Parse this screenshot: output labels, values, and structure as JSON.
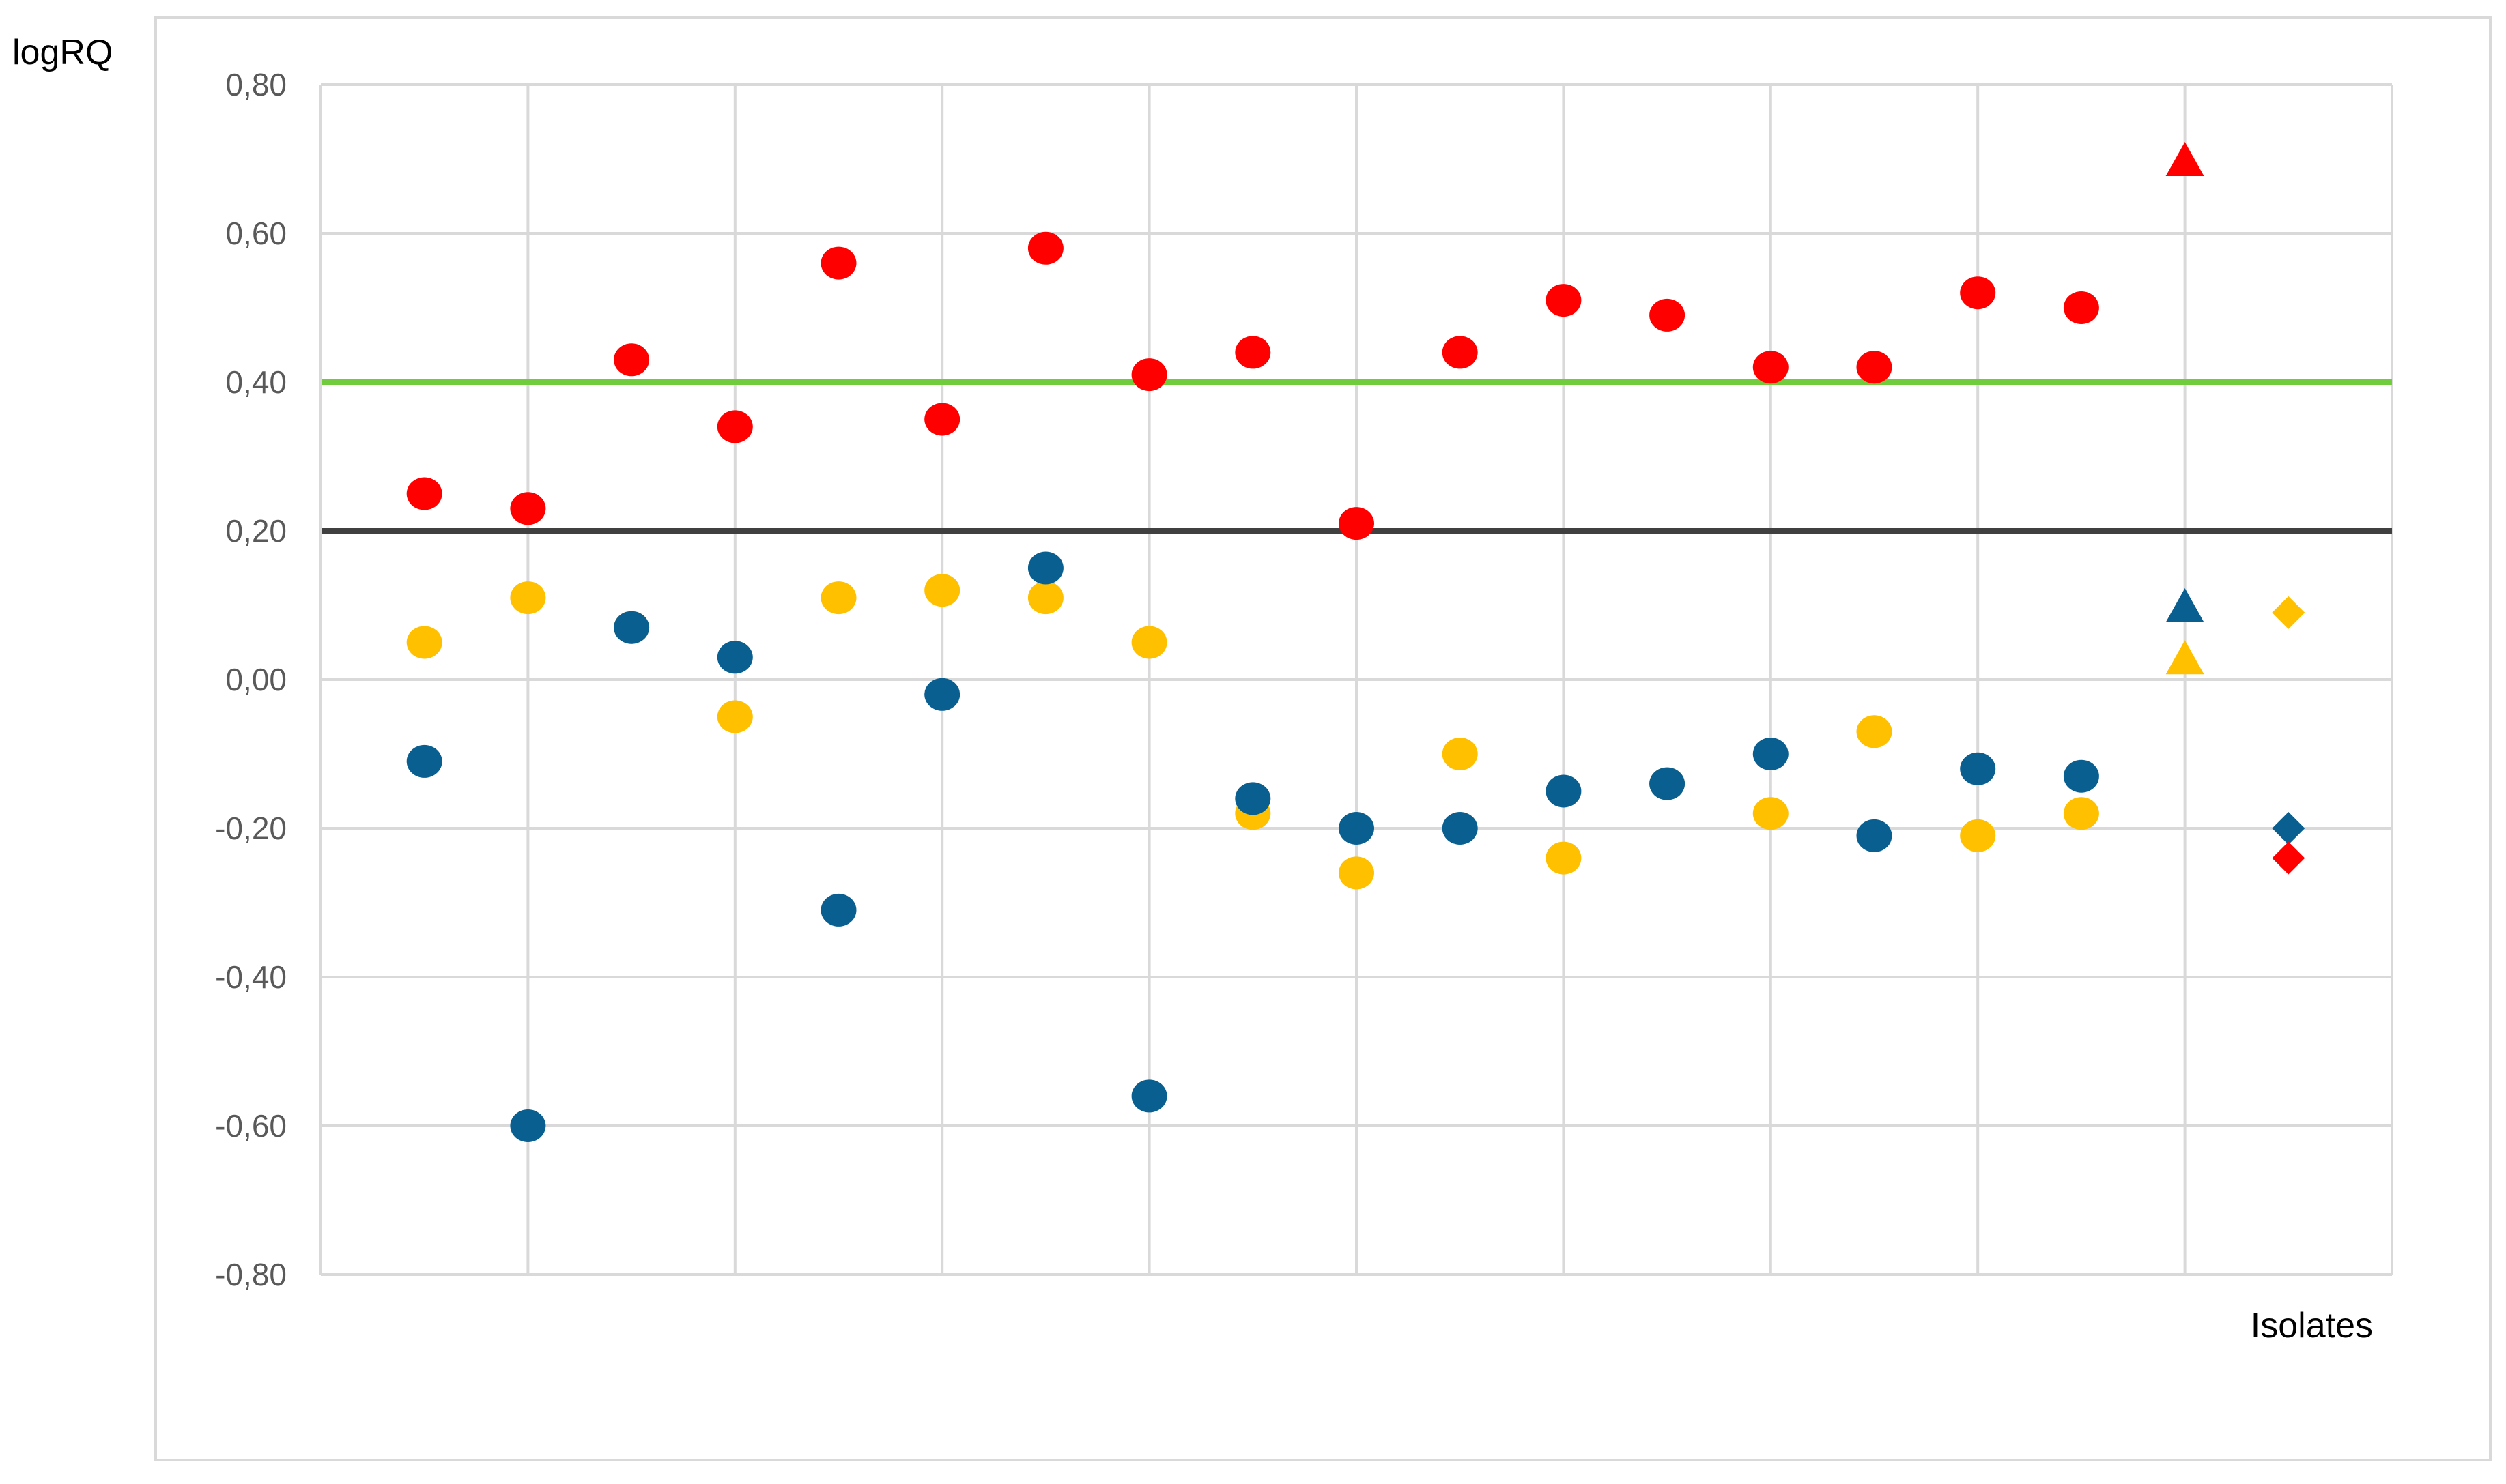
{
  "chart_data": {
    "type": "scatter",
    "ylabel": "logRQ",
    "xlabel": "Isolates",
    "ylim": [
      -0.8,
      0.8
    ],
    "yticks": [
      0.8,
      0.6,
      0.4,
      0.2,
      0.0,
      -0.2,
      -0.4,
      -0.6,
      -0.8
    ],
    "ytick_labels": [
      "0,80",
      "0,60",
      "0,40",
      "0,20",
      "0,00",
      "-0,20",
      "-0,40",
      "-0,60",
      "-0,80"
    ],
    "xlim": [
      0,
      20
    ],
    "grid": true,
    "legend": "none",
    "colors": {
      "red": "#ff0000",
      "yellow": "#ffc000",
      "blue": "#0a5f91",
      "green_line": "#70cc3c",
      "dark_line": "#404040",
      "grid": "#d9d9d9"
    },
    "reference_lines": [
      {
        "y": 0.4,
        "color": "#70cc3c"
      },
      {
        "y": 0.2,
        "color": "#404040"
      }
    ],
    "series": [
      {
        "color": "#ffc000",
        "marker": "circle",
        "points": [
          {
            "x": 1,
            "y": 0.05
          },
          {
            "x": 2,
            "y": 0.11
          },
          {
            "x": 3,
            "y": 0.07
          },
          {
            "x": 4,
            "y": -0.05
          },
          {
            "x": 5,
            "y": 0.11
          },
          {
            "x": 6,
            "y": 0.12
          },
          {
            "x": 7,
            "y": 0.11
          },
          {
            "x": 8,
            "y": 0.05
          },
          {
            "x": 9,
            "y": -0.18
          },
          {
            "x": 10,
            "y": -0.26
          },
          {
            "x": 11,
            "y": -0.1
          },
          {
            "x": 12,
            "y": -0.24
          },
          {
            "x": 13,
            "y": -0.14
          },
          {
            "x": 14,
            "y": -0.18
          },
          {
            "x": 15,
            "y": -0.07
          },
          {
            "x": 16,
            "y": -0.21
          },
          {
            "x": 17,
            "y": -0.18
          }
        ]
      },
      {
        "color": "#0a5f91",
        "marker": "circle",
        "points": [
          {
            "x": 1,
            "y": -0.11
          },
          {
            "x": 2,
            "y": -0.6
          },
          {
            "x": 3,
            "y": 0.07
          },
          {
            "x": 4,
            "y": 0.03
          },
          {
            "x": 5,
            "y": -0.31
          },
          {
            "x": 6,
            "y": -0.02
          },
          {
            "x": 7,
            "y": 0.15
          },
          {
            "x": 8,
            "y": -0.56
          },
          {
            "x": 9,
            "y": -0.16
          },
          {
            "x": 10,
            "y": -0.2
          },
          {
            "x": 11,
            "y": -0.2
          },
          {
            "x": 12,
            "y": -0.15
          },
          {
            "x": 13,
            "y": -0.14
          },
          {
            "x": 14,
            "y": -0.1
          },
          {
            "x": 15,
            "y": -0.21
          },
          {
            "x": 16,
            "y": -0.12
          },
          {
            "x": 17,
            "y": -0.13
          }
        ]
      },
      {
        "color": "#ff0000",
        "marker": "circle",
        "points": [
          {
            "x": 1,
            "y": 0.25
          },
          {
            "x": 2,
            "y": 0.23
          },
          {
            "x": 3,
            "y": 0.43
          },
          {
            "x": 4,
            "y": 0.34
          },
          {
            "x": 5,
            "y": 0.56
          },
          {
            "x": 6,
            "y": 0.35
          },
          {
            "x": 7,
            "y": 0.58
          },
          {
            "x": 8,
            "y": 0.41
          },
          {
            "x": 9,
            "y": 0.44
          },
          {
            "x": 10,
            "y": 0.21
          },
          {
            "x": 11,
            "y": 0.44
          },
          {
            "x": 12,
            "y": 0.51
          },
          {
            "x": 13,
            "y": 0.49
          },
          {
            "x": 14,
            "y": 0.42
          },
          {
            "x": 15,
            "y": 0.42
          },
          {
            "x": 16,
            "y": 0.52
          },
          {
            "x": 17,
            "y": 0.5
          }
        ]
      },
      {
        "color": "#ff0000",
        "marker": "triangle",
        "points": [
          {
            "x": 18,
            "y": 0.7
          }
        ]
      },
      {
        "color": "#0a5f91",
        "marker": "triangle",
        "points": [
          {
            "x": 18,
            "y": 0.1
          }
        ]
      },
      {
        "color": "#ffc000",
        "marker": "triangle",
        "points": [
          {
            "x": 18,
            "y": 0.03
          }
        ]
      },
      {
        "color": "#ffc000",
        "marker": "diamond",
        "points": [
          {
            "x": 19,
            "y": 0.09
          }
        ]
      },
      {
        "color": "#0a5f91",
        "marker": "diamond",
        "points": [
          {
            "x": 19,
            "y": -0.2
          }
        ]
      },
      {
        "color": "#ff0000",
        "marker": "diamond",
        "points": [
          {
            "x": 19,
            "y": -0.24
          }
        ]
      }
    ]
  }
}
